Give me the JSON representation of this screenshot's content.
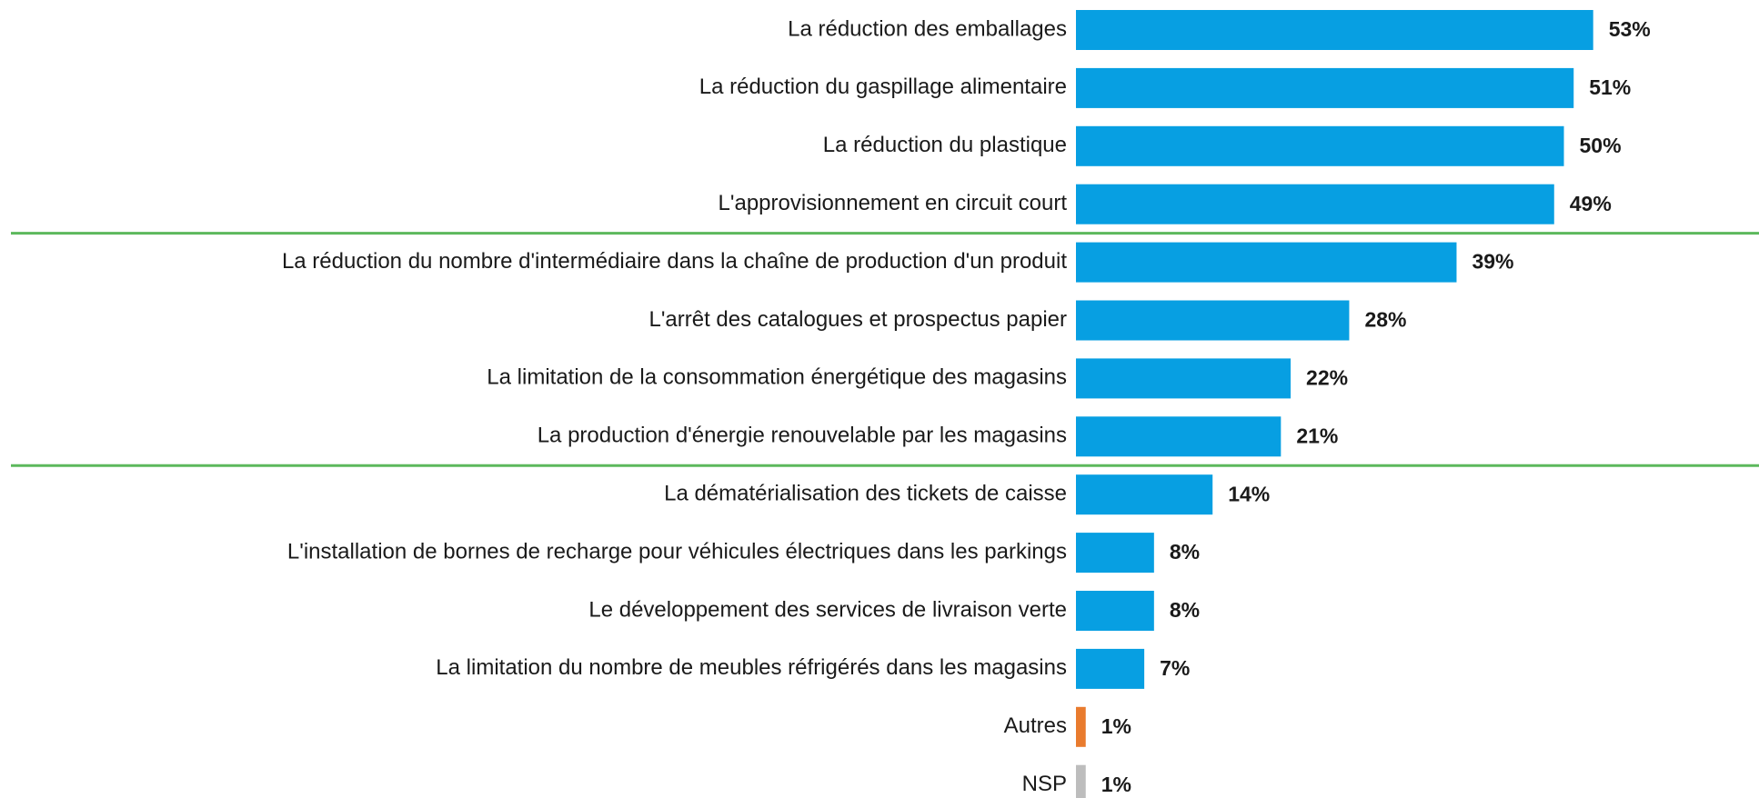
{
  "chart_data": {
    "type": "bar",
    "categories": [
      "La réduction des emballages",
      "La réduction du gaspillage alimentaire",
      "La réduction du plastique",
      "L'approvisionnement en circuit court",
      "La réduction du nombre d'intermédiaire dans la chaîne de production d'un produit",
      "L'arrêt des catalogues et prospectus papier",
      "La limitation de la consommation énergétique des magasins",
      "La production d'énergie renouvelable par les magasins",
      "La dématérialisation des tickets de caisse",
      "L'installation de bornes de recharge pour véhicules électriques dans les parkings",
      "Le développement des services de livraison verte",
      "La limitation du nombre de meubles réfrigérés dans les magasins",
      "Autres",
      "NSP"
    ],
    "values": [
      53,
      51,
      50,
      49,
      39,
      28,
      22,
      21,
      14,
      8,
      8,
      7,
      1,
      1
    ],
    "value_labels": [
      "53%",
      "51%",
      "50%",
      "49%",
      "39%",
      "28%",
      "22%",
      "21%",
      "14%",
      "8%",
      "8%",
      "7%",
      "1%",
      "1%"
    ],
    "colors": [
      "#079fe2",
      "#079fe2",
      "#079fe2",
      "#079fe2",
      "#079fe2",
      "#079fe2",
      "#079fe2",
      "#079fe2",
      "#079fe2",
      "#079fe2",
      "#079fe2",
      "#079fe2",
      "#e97b2e",
      "#bdbdbd"
    ]
  }
}
